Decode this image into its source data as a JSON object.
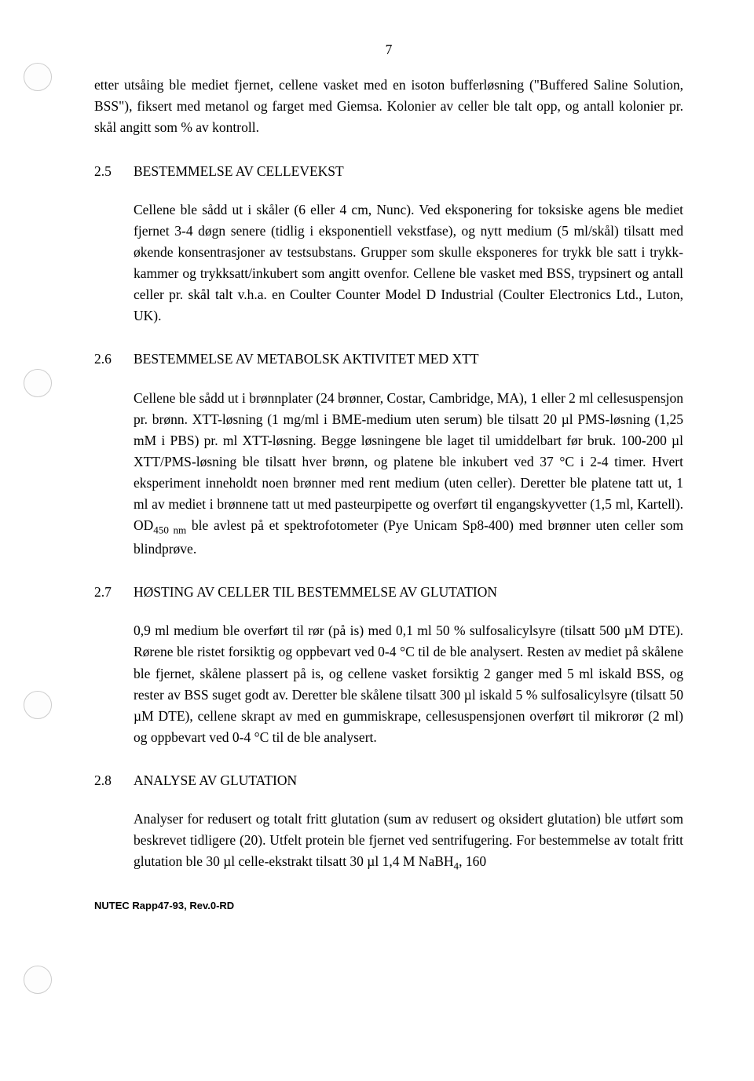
{
  "page_number": "7",
  "continuing_paragraph": "etter utsåing ble mediet fjernet, cellene vasket med en isoton bufferløsning (\"Buffered Saline Solution, BSS\"), fiksert med metanol og farget med Giemsa. Kolonier av celler ble talt opp, og antall kolonier pr. skål angitt som % av kontroll.",
  "sections": {
    "s25": {
      "num": "2.5",
      "title": "BESTEMMELSE AV CELLEVEKST",
      "body": "Cellene ble sådd ut i skåler (6 eller 4 cm, Nunc). Ved eksponering for toksiske agens ble mediet fjernet 3-4 døgn senere (tidlig i eksponentiell vekstfase), og nytt medium (5 ml/skål) tilsatt med økende konsentrasjoner av testsubstans. Grupper som skulle eksponeres for trykk ble satt i trykk-kammer og trykksatt/inkubert som angitt ovenfor. Cellene ble vasket med BSS, trypsinert og antall celler pr. skål talt v.h.a. en Coulter Counter Model D Industrial (Coulter Electronics Ltd., Luton, UK)."
    },
    "s26": {
      "num": "2.6",
      "title": "BESTEMMELSE AV METABOLSK AKTIVITET MED XTT",
      "body_html": "Cellene ble sådd ut i brønnplater (24 brønner, Costar, Cambridge, MA), 1 eller 2 ml cellesuspensjon pr. brønn. XTT-løsning (1 mg/ml i BME-medium uten serum) ble tilsatt 20 µl PMS-løsning (1,25 mM i PBS) pr. ml XTT-løsning. Begge løsningene ble laget til umiddelbart før bruk. 100-200 µl XTT/PMS-løsning ble tilsatt hver brønn, og platene ble inkubert ved 37 °C i 2-4 timer. Hvert eksperiment inneholdt noen brønner med rent medium (uten celler). Deretter ble platene tatt ut, 1 ml av mediet i brønnene tatt ut med pasteurpipette og overført til engangskyvetter (1,5 ml, Kartell). OD<sub>450 nm</sub> ble avlest på et spektrofotometer (Pye Unicam Sp8-400) med brønner uten celler som blindprøve."
    },
    "s27": {
      "num": "2.7",
      "title": "HØSTING AV CELLER TIL BESTEMMELSE AV GLUTATION",
      "body": "0,9 ml medium ble overført til rør (på is) med 0,1 ml 50 % sulfosalicylsyre (tilsatt 500 µM DTE). Rørene ble ristet forsiktig og oppbevart ved 0-4 °C til de ble analysert. Resten av mediet på skålene ble fjernet, skålene plassert på is, og cellene vasket forsiktig 2 ganger med 5 ml iskald BSS, og rester av BSS suget godt av. Deretter ble skålene tilsatt 300 µl iskald 5 % sulfosalicylsyre (tilsatt 50 µM DTE), cellene skrapt av med en gummiskrape, cellesuspensjonen overført til mikrorør (2 ml) og oppbevart ved 0-4 °C til de ble analysert."
    },
    "s28": {
      "num": "2.8",
      "title": "ANALYSE AV GLUTATION",
      "body_html": "Analyser for redusert og totalt fritt glutation (sum av redusert og oksidert glutation) ble utført som beskrevet tidligere (20). Utfelt protein ble fjernet ved sentrifugering. For bestemmelse av totalt fritt glutation ble 30 µl celle-ekstrakt tilsatt 30 µl 1,4 M NaBH<sub>4</sub>, 160"
    }
  },
  "footer": "NUTEC Rapp47-93, Rev.0-RD",
  "colors": {
    "text": "#000000",
    "background": "#ffffff"
  },
  "typography": {
    "body_font": "Times New Roman",
    "body_size_pt": 12,
    "footer_font": "Arial",
    "footer_size_pt": 9
  }
}
